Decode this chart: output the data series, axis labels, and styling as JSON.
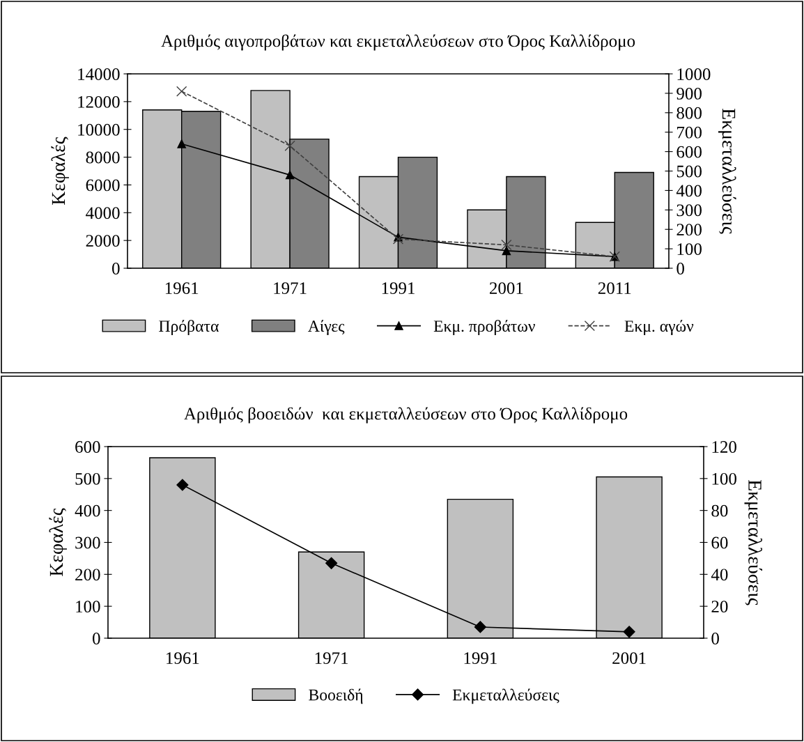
{
  "chart_data": [
    {
      "type": "bar",
      "title": "Αριθμός αιγοπροβάτων και εκμεταλλεύσεων στο Όρος Καλλίδρομο",
      "ylabel": "Κεφαλές",
      "y2label": "Εκμεταλλεύσεις",
      "categories": [
        "1961",
        "1971",
        "1991",
        "2001",
        "2011"
      ],
      "series": [
        {
          "name": "Πρόβατα",
          "color": "#c0c0c0",
          "values": [
            11400,
            12800,
            6600,
            4200,
            3300
          ]
        },
        {
          "name": "Αίγες",
          "color": "#808080",
          "values": [
            11300,
            9300,
            8000,
            6600,
            6900
          ]
        },
        {
          "name": "Εκμ. προβάτων",
          "type": "line",
          "axis": "y2",
          "color": "#000000",
          "marker": "triangle",
          "line_style": "solid",
          "values": [
            640,
            480,
            160,
            90,
            60
          ]
        },
        {
          "name": "Εκμ. αγών",
          "type": "line",
          "axis": "y2",
          "color": "#404040",
          "marker": "cross",
          "line_style": "dashed",
          "values": [
            910,
            630,
            150,
            120,
            60
          ]
        }
      ],
      "ylim": [
        0,
        14000
      ],
      "yticks": [
        0,
        2000,
        4000,
        6000,
        8000,
        10000,
        12000,
        14000
      ],
      "y2lim": [
        0,
        1000
      ],
      "y2ticks": [
        0,
        100,
        200,
        300,
        400,
        500,
        600,
        700,
        800,
        900,
        1000
      ],
      "grid": false,
      "legend": "bottom"
    },
    {
      "type": "bar",
      "title": "Αριθμός βοοειδών  και εκμεταλλεύσεων στο Όρος Καλλίδρομο",
      "ylabel": "Κεφαλές",
      "y2label": "Εκμεταλλεύσεις",
      "categories": [
        "1961",
        "1971",
        "1991",
        "2001"
      ],
      "series": [
        {
          "name": "Βοοειδή",
          "color": "#c0c0c0",
          "values": [
            565,
            270,
            435,
            505
          ]
        },
        {
          "name": "Εκμεταλλεύσεις",
          "type": "line",
          "axis": "y2",
          "color": "#000000",
          "marker": "diamond",
          "line_style": "solid",
          "values": [
            96,
            47,
            7,
            4
          ]
        }
      ],
      "ylim": [
        0,
        600
      ],
      "yticks": [
        0,
        100,
        200,
        300,
        400,
        500,
        600
      ],
      "y2lim": [
        0,
        120
      ],
      "y2ticks": [
        0,
        20,
        40,
        60,
        80,
        100,
        120
      ],
      "grid": false,
      "legend": "bottom"
    }
  ]
}
